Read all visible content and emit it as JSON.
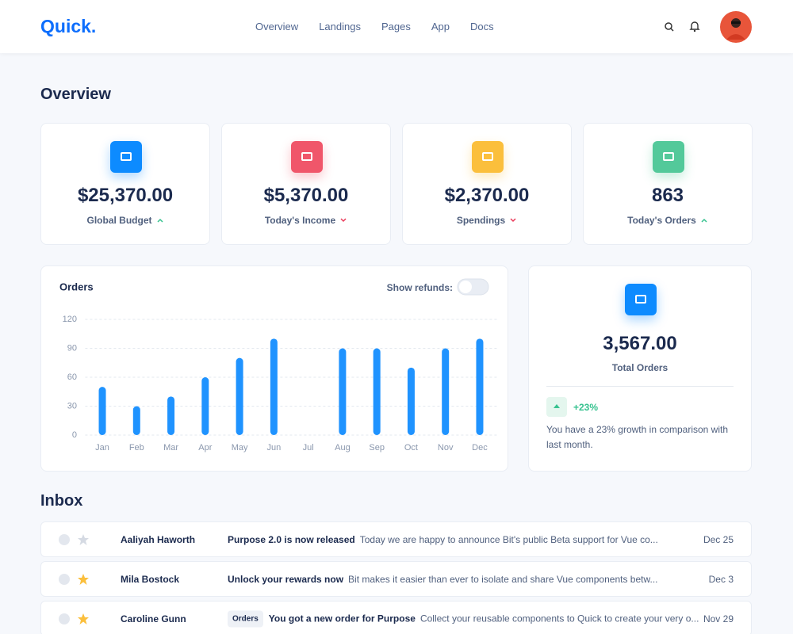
{
  "header": {
    "logo": "Quick.",
    "nav": [
      "Overview",
      "Landings",
      "Pages",
      "App",
      "Docs"
    ]
  },
  "overview": {
    "title": "Overview",
    "cards": [
      {
        "value": "$25,370.00",
        "label": "Global Budget",
        "trend": "up",
        "color": "#0d8bff"
      },
      {
        "value": "$5,370.00",
        "label": "Today's Income",
        "trend": "down",
        "color": "#f0566a"
      },
      {
        "value": "$2,370.00",
        "label": "Spendings",
        "trend": "down",
        "color": "#fbbf3c"
      },
      {
        "value": "863",
        "label": "Today's Orders",
        "trend": "up",
        "color": "#53c99a"
      }
    ]
  },
  "chart_data": {
    "type": "bar",
    "title": "Orders",
    "toggle_label": "Show refunds:",
    "categories": [
      "Jan",
      "Feb",
      "Mar",
      "Apr",
      "May",
      "Jun",
      "Jul",
      "Aug",
      "Sep",
      "Oct",
      "Nov",
      "Dec"
    ],
    "values": [
      50,
      30,
      40,
      60,
      80,
      100,
      null,
      90,
      90,
      70,
      90,
      100
    ],
    "color": "#1f93ff",
    "ylim": [
      0,
      120
    ],
    "yticks": [
      0,
      30,
      60,
      90,
      120
    ],
    "grid": true
  },
  "total": {
    "value": "3,567.00",
    "label": "Total Orders",
    "change": "+23%",
    "note": "You have a 23% growth in comparison with last month."
  },
  "inbox": {
    "title": "Inbox",
    "rows": [
      {
        "starred": false,
        "name": "Aaliyah Haworth",
        "subject": "Purpose 2.0 is now released",
        "preview": "Today we are happy to announce Bit's public Beta support for Vue co...",
        "date": "Dec 25"
      },
      {
        "starred": true,
        "name": "Mila Bostock",
        "subject": "Unlock your rewards now",
        "preview": "Bit makes it easier than ever to isolate and share Vue components betw...",
        "date": "Dec 3"
      },
      {
        "starred": true,
        "name": "Caroline Gunn",
        "tag": "Orders",
        "subject": "You got a new order for Purpose",
        "preview": "Collect your reusable components to Quick to create your very o...",
        "date": "Nov 29"
      }
    ]
  }
}
